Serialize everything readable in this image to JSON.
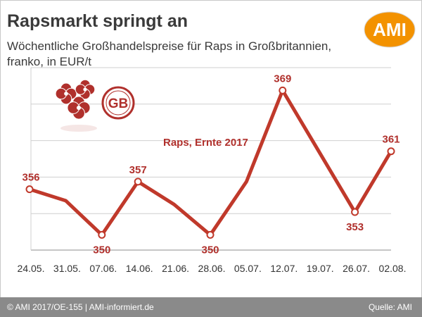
{
  "title": "Rapsmarkt springt an",
  "subtitle": "Wöchentliche Großhandelspreise für Raps in Großbritannien, franko, in EUR/t",
  "logo_text": "AMI",
  "badge_text": "GB",
  "footer": {
    "copyright": "© AMI 2017/OE-155 | AMI-informiert.de",
    "source": "Quelle: AMI"
  },
  "colors": {
    "line": "#c0392b",
    "accent": "#b0302c",
    "logo": "#f39200",
    "footer": "#8a8a8a"
  },
  "chart_data": {
    "type": "line",
    "categories": [
      "24.05.",
      "31.05.",
      "07.06.",
      "14.06.",
      "21.06.",
      "28.06.",
      "05.07.",
      "12.07.",
      "19.07.",
      "26.07.",
      "02.08."
    ],
    "series": [
      {
        "name": "Raps, Ernte 2017",
        "values": [
          356,
          354.5,
          350,
          357,
          354,
          350,
          357,
          369,
          361,
          353,
          361
        ],
        "labels": [
          "356",
          "",
          "350",
          "357",
          "",
          "350",
          "",
          "369",
          "",
          "353",
          "361"
        ]
      }
    ],
    "xlabel": "",
    "ylabel": "",
    "ylim": [
      348,
      372
    ],
    "grid": true,
    "legend": "none"
  }
}
